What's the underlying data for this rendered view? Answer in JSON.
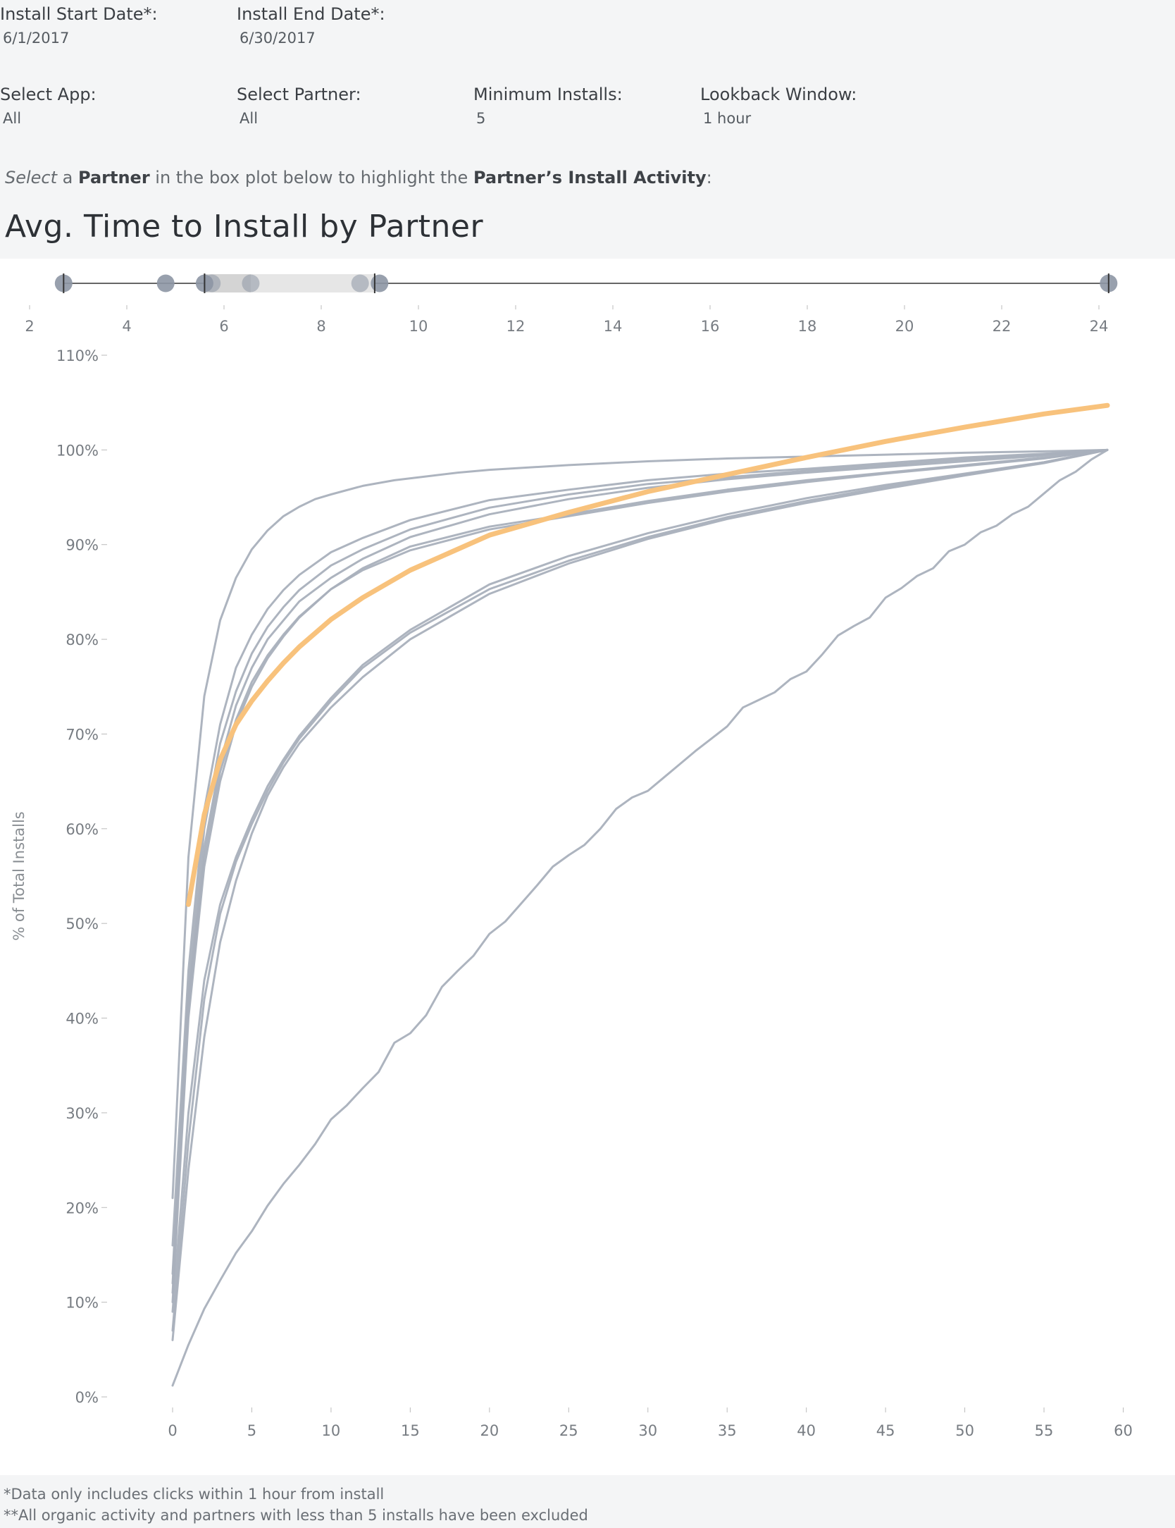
{
  "filters": {
    "install_start": {
      "label": "Install Start Date*:",
      "value": "6/1/2017"
    },
    "install_end": {
      "label": "Install End Date*:",
      "value": "6/30/2017"
    },
    "app": {
      "label": "Select App:",
      "value": "All"
    },
    "partner": {
      "label": "Select Partner:",
      "value": "All"
    },
    "min_installs": {
      "label": "Minimum Installs:",
      "value": "5"
    },
    "lookback": {
      "label": "Lookback Window:",
      "value": "1 hour"
    }
  },
  "instruction": {
    "w1": "Select",
    "w2": " a ",
    "w3": "Partner",
    "w4": " in the box plot below to highlight the ",
    "w5": "Partner’s Install Activity",
    "w6": ":"
  },
  "dashboard_title": "Avg. Time to Install by Partner",
  "footnotes": [
    "*Data only includes clicks within 1 hour from install",
    "**All organic activity and partners with less than 5 installs have been excluded"
  ],
  "colors": {
    "series": "#a9b0bc",
    "highlight": "#f8c27c",
    "box": "#e6e6e6",
    "box_inner": "#d4d4d4",
    "point": "#8d96a4",
    "axis": "#333333"
  },
  "chart_data": [
    {
      "type": "box",
      "title": "",
      "xlim": [
        2,
        24
      ],
      "xticks": [
        2,
        4,
        6,
        8,
        10,
        12,
        14,
        16,
        18,
        20,
        22,
        24
      ],
      "points": [
        2.7,
        4.8,
        5.6,
        5.75,
        6.55,
        8.8,
        9.2,
        24.2
      ],
      "whisker_low": 2.7,
      "q1": 5.6,
      "median": 6.55,
      "q3": 9.1,
      "whisker_high": 24.2
    },
    {
      "type": "line",
      "title": "",
      "xlabel": "",
      "ylabel": "% of Total Installs",
      "xlim": [
        -2,
        60
      ],
      "ylim": [
        0,
        110
      ],
      "xticks": [
        0,
        5,
        10,
        15,
        20,
        25,
        30,
        35,
        40,
        45,
        50,
        55,
        60
      ],
      "yticks": [
        0,
        10,
        20,
        30,
        40,
        50,
        60,
        70,
        80,
        90,
        100,
        110
      ],
      "ytick_labels": [
        "0%",
        "10%",
        "20%",
        "30%",
        "40%",
        "50%",
        "60%",
        "70%",
        "80%",
        "90%",
        "100%",
        "110%"
      ],
      "series": [
        {
          "x": [
            0,
            1,
            2,
            3,
            4,
            5,
            6,
            7,
            8,
            9,
            10,
            12,
            14,
            16,
            18,
            20,
            25,
            30,
            35,
            40,
            45,
            50,
            55,
            59
          ],
          "y": [
            21,
            57,
            74,
            82,
            86.5,
            89.5,
            91.5,
            93,
            94,
            94.8,
            95.3,
            96.2,
            96.8,
            97.2,
            97.6,
            97.9,
            98.4,
            98.8,
            99.1,
            99.3,
            99.5,
            99.7,
            99.85,
            100
          ]
        },
        {
          "x": [
            0,
            1,
            2,
            3,
            4,
            5,
            6,
            7,
            8,
            10,
            12,
            15,
            20,
            25,
            30,
            35,
            40,
            45,
            50,
            55,
            59
          ],
          "y": [
            16,
            45,
            62,
            71,
            77,
            80.5,
            83.2,
            85.2,
            86.8,
            89.2,
            90.7,
            92.6,
            94.7,
            95.8,
            96.8,
            97.5,
            98,
            98.6,
            99.2,
            99.6,
            100
          ]
        },
        {
          "x": [
            0,
            1,
            2,
            3,
            4,
            5,
            6,
            7,
            8,
            10,
            12,
            15,
            20,
            25,
            30,
            35,
            40,
            45,
            50,
            55,
            59
          ],
          "y": [
            13,
            43,
            60,
            69,
            74.5,
            78.5,
            81.3,
            83.4,
            85.2,
            87.8,
            89.5,
            91.6,
            93.9,
            95.3,
            96.4,
            97.1,
            97.8,
            98.4,
            99,
            99.5,
            100
          ]
        },
        {
          "x": [
            0,
            1,
            2,
            3,
            4,
            5,
            6,
            7,
            8,
            10,
            12,
            15,
            20,
            25,
            30,
            35,
            40,
            45,
            50,
            55,
            59
          ],
          "y": [
            12,
            42,
            58,
            67,
            73,
            77,
            80,
            82,
            84,
            86.5,
            88.5,
            90.8,
            93.2,
            94.8,
            96,
            96.9,
            97.6,
            98.2,
            98.8,
            99.4,
            100
          ]
        },
        {
          "x": [
            0,
            1,
            2,
            3,
            4,
            5,
            6,
            7,
            8,
            10,
            12,
            15,
            20,
            25,
            30,
            35,
            40,
            45,
            50,
            55,
            59
          ],
          "y": [
            10,
            40,
            56,
            65,
            71,
            75,
            78,
            80.3,
            82.3,
            85.3,
            87.5,
            89.8,
            91.9,
            93.2,
            94.6,
            95.8,
            96.8,
            97.6,
            98.4,
            99.2,
            100
          ]
        },
        {
          "x": [
            0,
            1,
            2,
            3,
            4,
            5,
            6,
            7,
            8,
            10,
            12,
            15,
            20,
            25,
            30,
            35,
            40,
            45,
            50,
            55,
            59
          ],
          "y": [
            11,
            41,
            57,
            66,
            71.5,
            75.5,
            78.3,
            80.5,
            82.4,
            85.3,
            87.3,
            89.4,
            91.6,
            93,
            94.4,
            95.6,
            96.6,
            97.5,
            98.3,
            99.1,
            100
          ]
        },
        {
          "x": [
            0,
            1,
            2,
            3,
            4,
            5,
            6,
            7,
            8,
            10,
            12,
            15,
            20,
            25,
            30,
            35,
            40,
            45,
            50,
            55,
            59
          ],
          "y": [
            9,
            30,
            44,
            52,
            57,
            61,
            64.5,
            67.3,
            69.8,
            73.8,
            77.3,
            81,
            85.8,
            88.8,
            91.2,
            93.2,
            94.9,
            96.3,
            97.5,
            98.7,
            100
          ]
        },
        {
          "x": [
            0,
            1,
            2,
            3,
            4,
            5,
            6,
            7,
            8,
            10,
            12,
            15,
            20,
            25,
            30,
            35,
            40,
            45,
            50,
            55,
            59
          ],
          "y": [
            7,
            27,
            42,
            51,
            56.5,
            60.5,
            64,
            67,
            69.5,
            73.5,
            77,
            80.7,
            85.3,
            88.3,
            90.8,
            92.9,
            94.6,
            96.1,
            97.4,
            98.7,
            100
          ]
        },
        {
          "x": [
            0,
            1,
            2,
            3,
            4,
            5,
            6,
            7,
            8,
            10,
            12,
            15,
            20,
            25,
            30,
            35,
            40,
            45,
            50,
            55,
            59
          ],
          "y": [
            6,
            24,
            38,
            48,
            54.5,
            59.5,
            63.5,
            66.5,
            69,
            72.8,
            76,
            80,
            84.8,
            88,
            90.6,
            92.7,
            94.4,
            95.9,
            97.3,
            98.6,
            100
          ]
        },
        {
          "x": [
            0,
            1,
            2,
            3,
            4,
            5,
            6,
            7,
            8,
            9,
            10,
            11,
            12,
            13,
            14,
            15,
            16,
            17,
            18,
            19,
            20,
            21,
            22,
            23,
            24,
            25,
            26,
            27,
            28,
            29,
            30,
            31,
            32,
            33,
            34,
            35,
            36,
            37,
            38,
            39,
            40,
            41,
            42,
            43,
            44,
            45,
            46,
            47,
            48,
            49,
            50,
            51,
            52,
            53,
            54,
            55,
            56,
            57,
            58,
            59
          ],
          "y": [
            1.2,
            5.5,
            9.3,
            12.3,
            15.2,
            17.5,
            20.2,
            22.5,
            24.5,
            26.7,
            29.3,
            30.8,
            32.6,
            34.3,
            37.4,
            38.4,
            40.3,
            43.3,
            45,
            46.6,
            48.9,
            50.2,
            52.1,
            54,
            56,
            57.2,
            58.3,
            60,
            62.1,
            63.3,
            64,
            65.4,
            66.8,
            68.2,
            69.5,
            70.8,
            72.8,
            73.6,
            74.4,
            75.8,
            76.6,
            78.4,
            80.4,
            81.4,
            82.3,
            84.4,
            85.4,
            86.7,
            87.5,
            89.3,
            90,
            91.3,
            92,
            93.2,
            94,
            95.4,
            96.8,
            97.7,
            99,
            100
          ]
        },
        {
          "highlight": true,
          "x": [
            1,
            2,
            3,
            4,
            5,
            6,
            7,
            8,
            10,
            12,
            15,
            20,
            25,
            30,
            35,
            40,
            45,
            50,
            55,
            59
          ],
          "y": [
            52,
            61.5,
            67.3,
            71,
            73.5,
            75.6,
            77.5,
            79.2,
            82.1,
            84.4,
            87.3,
            91,
            93.4,
            95.6,
            97.4,
            99.2,
            100.9,
            102.4,
            103.8,
            104.7
          ]
        }
      ]
    }
  ]
}
